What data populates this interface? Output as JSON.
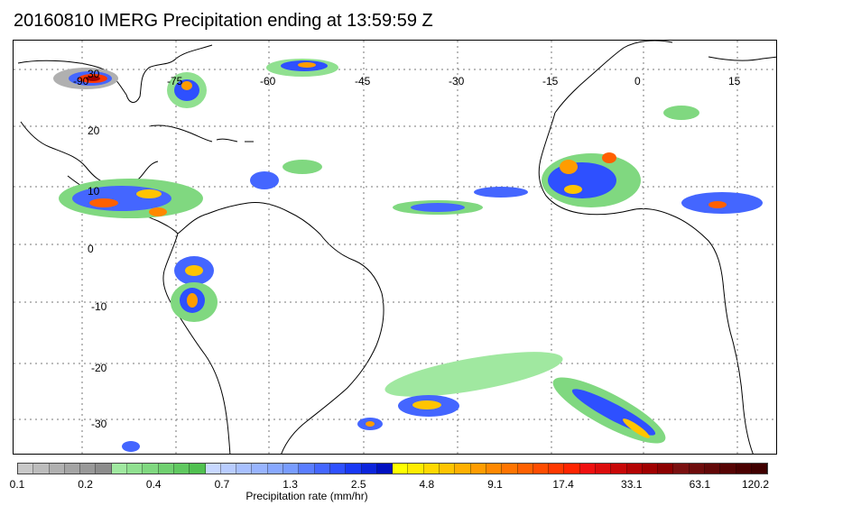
{
  "title": "20160810 IMERG Precipitation ending at 13:59:59 Z",
  "map": {
    "longitude_labels": [
      "-90",
      "-75",
      "-60",
      "-45",
      "-30",
      "-15",
      "0",
      "15"
    ],
    "latitude_labels": [
      "30",
      "20",
      "10",
      "0",
      "-10",
      "-20",
      "-30"
    ],
    "gridlines": "dotted"
  },
  "colorbar": {
    "label": "Precipitation rate (mm/hr)",
    "tick_labels": [
      "0.1",
      "0.2",
      "0.4",
      "0.7",
      "1.3",
      "2.5",
      "4.8",
      "9.1",
      "17.4",
      "33.1",
      "63.1",
      "120.2"
    ],
    "colors": [
      "#c8c8c8",
      "#bcbcbc",
      "#b0b0b0",
      "#a4a4a4",
      "#989898",
      "#8c8c8c",
      "#a0e8a0",
      "#90e090",
      "#80d880",
      "#70d070",
      "#60c860",
      "#50c050",
      "#c8d8ff",
      "#b8ccff",
      "#a8c0ff",
      "#98b4ff",
      "#88a8ff",
      "#789cff",
      "#5a7dff",
      "#4466ff",
      "#2e50ff",
      "#1838f5",
      "#0c24dc",
      "#0010c0",
      "#ffff00",
      "#ffec00",
      "#ffd800",
      "#ffc400",
      "#ffb000",
      "#ff9c00",
      "#ff8800",
      "#ff7400",
      "#ff6000",
      "#ff4c00",
      "#ff3800",
      "#ff2400",
      "#f01010",
      "#dc0c0c",
      "#c80808",
      "#b40404",
      "#a00000",
      "#8c0000",
      "#7a1010",
      "#6e0c0c",
      "#620808",
      "#560404",
      "#4a0000",
      "#400000"
    ]
  }
}
